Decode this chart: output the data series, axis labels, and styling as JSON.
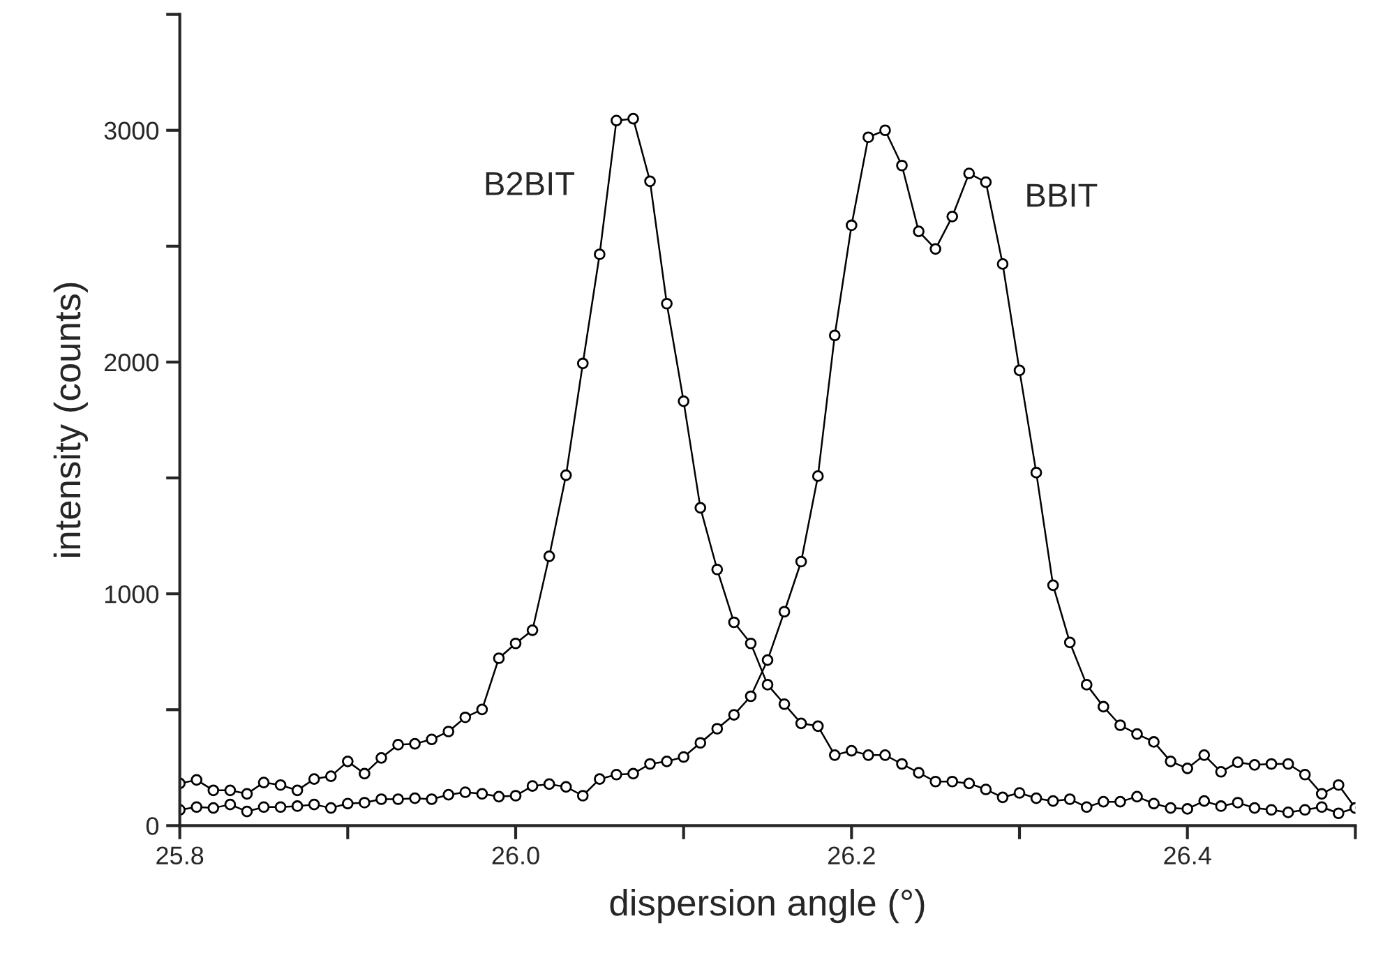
{
  "chart_data": {
    "type": "line",
    "xlabel": "dispersion angle (°)",
    "ylabel": "intensity (counts)",
    "x": [
      25.8,
      25.81,
      25.82,
      25.83,
      25.84,
      25.85,
      25.86,
      25.87,
      25.88,
      25.89,
      25.9,
      25.91,
      25.92,
      25.93,
      25.94,
      25.95,
      25.96,
      25.97,
      25.98,
      25.99,
      26.0,
      26.01,
      26.02,
      26.03,
      26.04,
      26.05,
      26.06,
      26.07,
      26.08,
      26.09,
      26.1,
      26.11,
      26.12,
      26.13,
      26.14,
      26.15,
      26.16,
      26.17,
      26.18,
      26.19,
      26.2,
      26.21,
      26.22,
      26.23,
      26.24,
      26.25,
      26.26,
      26.27,
      26.28,
      26.29,
      26.3,
      26.31,
      26.32,
      26.33,
      26.34,
      26.35,
      26.36,
      26.37,
      26.38,
      26.39,
      26.4,
      26.41,
      26.42,
      26.43,
      26.44,
      26.45,
      26.46,
      26.47,
      26.48,
      26.49,
      26.5
    ],
    "series": [
      {
        "name": "B2BIT",
        "color": "#000000",
        "values": [
          182,
          197,
          152,
          152,
          137,
          186,
          175,
          152,
          201,
          213,
          277,
          224,
          292,
          349,
          353,
          372,
          406,
          467,
          501,
          722,
          786,
          843,
          1162,
          1512,
          1994,
          2465,
          3042,
          3050,
          2780,
          2252,
          1831,
          1371,
          1105,
          877,
          786,
          608,
          524,
          441,
          429,
          304,
          323,
          304,
          304,
          266,
          228,
          190,
          190,
          182,
          156,
          122,
          141,
          118,
          106,
          114,
          80,
          103,
          103,
          125,
          95,
          76,
          72,
          106,
          84,
          99,
          76,
          68,
          57,
          68,
          80,
          53,
          76
        ]
      },
      {
        "name": "BBIT",
        "color": "#000000",
        "values": [
          68,
          80,
          76,
          91,
          61,
          80,
          80,
          84,
          91,
          76,
          95,
          99,
          114,
          114,
          118,
          114,
          133,
          144,
          137,
          125,
          129,
          171,
          179,
          167,
          129,
          201,
          220,
          224,
          266,
          277,
          296,
          357,
          418,
          478,
          558,
          714,
          923,
          1139,
          1508,
          2115,
          2590,
          2970,
          3000,
          2848,
          2564,
          2488,
          2628,
          2814,
          2776,
          2423,
          1964,
          1523,
          1037,
          790,
          608,
          513,
          433,
          395,
          361,
          277,
          247,
          304,
          232,
          273,
          262,
          266,
          266,
          220,
          137,
          175,
          76
        ]
      }
    ],
    "xlim": [
      25.8,
      26.5
    ],
    "xticks": [
      25.8,
      {
        "value": 25.9,
        "label": null
      },
      {
        "value": 26.0,
        "label": "26.0"
      },
      {
        "value": 26.1,
        "label": null
      },
      26.2,
      {
        "value": 26.3,
        "label": null
      },
      26.4,
      {
        "value": 26.5,
        "label": null
      }
    ],
    "ylim": [
      0,
      3500
    ],
    "yticks": [
      0,
      {
        "value": 500,
        "label": null
      },
      1000,
      {
        "value": 1500,
        "label": null
      },
      2000,
      {
        "value": 2500,
        "label": null
      },
      3000,
      {
        "value": 3500,
        "label": null
      }
    ],
    "marker": "circle",
    "line_style": "solid",
    "grid": false,
    "legend": false
  }
}
